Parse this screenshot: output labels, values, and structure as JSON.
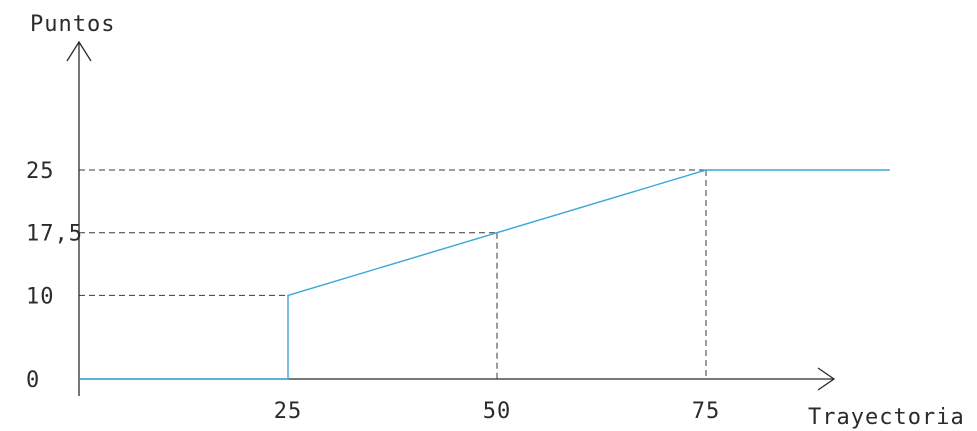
{
  "chart_data": {
    "type": "line",
    "xlabel": "Trayectoria",
    "ylabel": "Puntos",
    "x_ticks": [
      "25",
      "50",
      "75"
    ],
    "y_ticks": [
      "0",
      "10",
      "17,5",
      "25"
    ],
    "xlim": [
      0,
      90
    ],
    "ylim": [
      0,
      25
    ],
    "series": [
      {
        "x": [
          0,
          25,
          25,
          50,
          75,
          97
        ],
        "y": [
          0,
          0,
          10,
          17.5,
          25,
          25
        ],
        "color": "#3aa8d8"
      }
    ],
    "guides": [
      {
        "x": 25,
        "y": 10
      },
      {
        "x": 50,
        "y": 17.5
      },
      {
        "x": 75,
        "y": 25
      }
    ],
    "grid": false
  }
}
